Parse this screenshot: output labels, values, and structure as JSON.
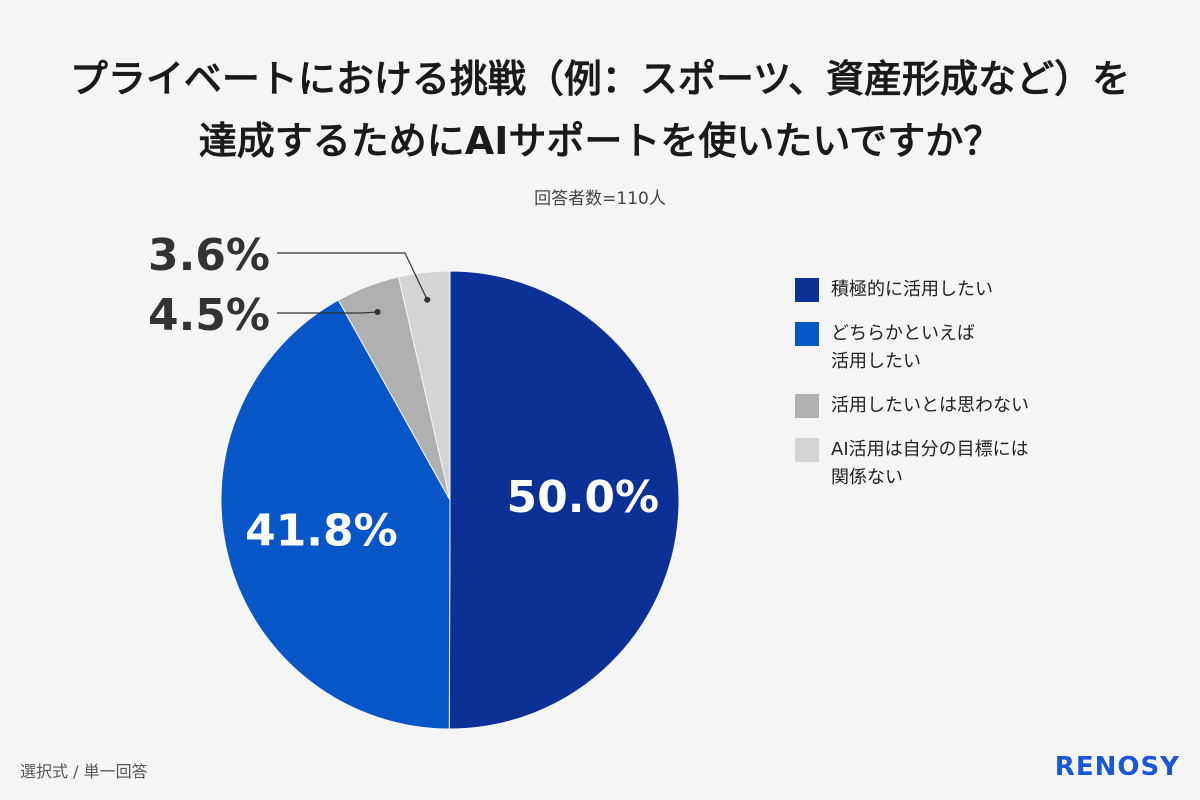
{
  "chart_data": {
    "type": "pie",
    "title": "プライベートにおける挑戦（例：スポーツ、資産形成など）を\n達成するためにAIサポートを使いたいですか？",
    "subtitle": "回答者数=110人",
    "categories": [
      "積極的に活用したい",
      "どちらかといえば\n活用したい",
      "活用したいとは思わない",
      "AI活用は自分の目標には\n関係ない"
    ],
    "values": [
      50.0,
      41.8,
      4.5,
      3.6
    ],
    "value_labels": [
      "50.0%",
      "41.8%",
      "4.5%",
      "3.6%"
    ],
    "colors": [
      "#0b3197",
      "#0756c8",
      "#b0b0b0",
      "#d4d4d4"
    ],
    "legend": "right"
  },
  "footer": {
    "note": "選択式 / 単一回答",
    "brand": "RENOSY"
  }
}
